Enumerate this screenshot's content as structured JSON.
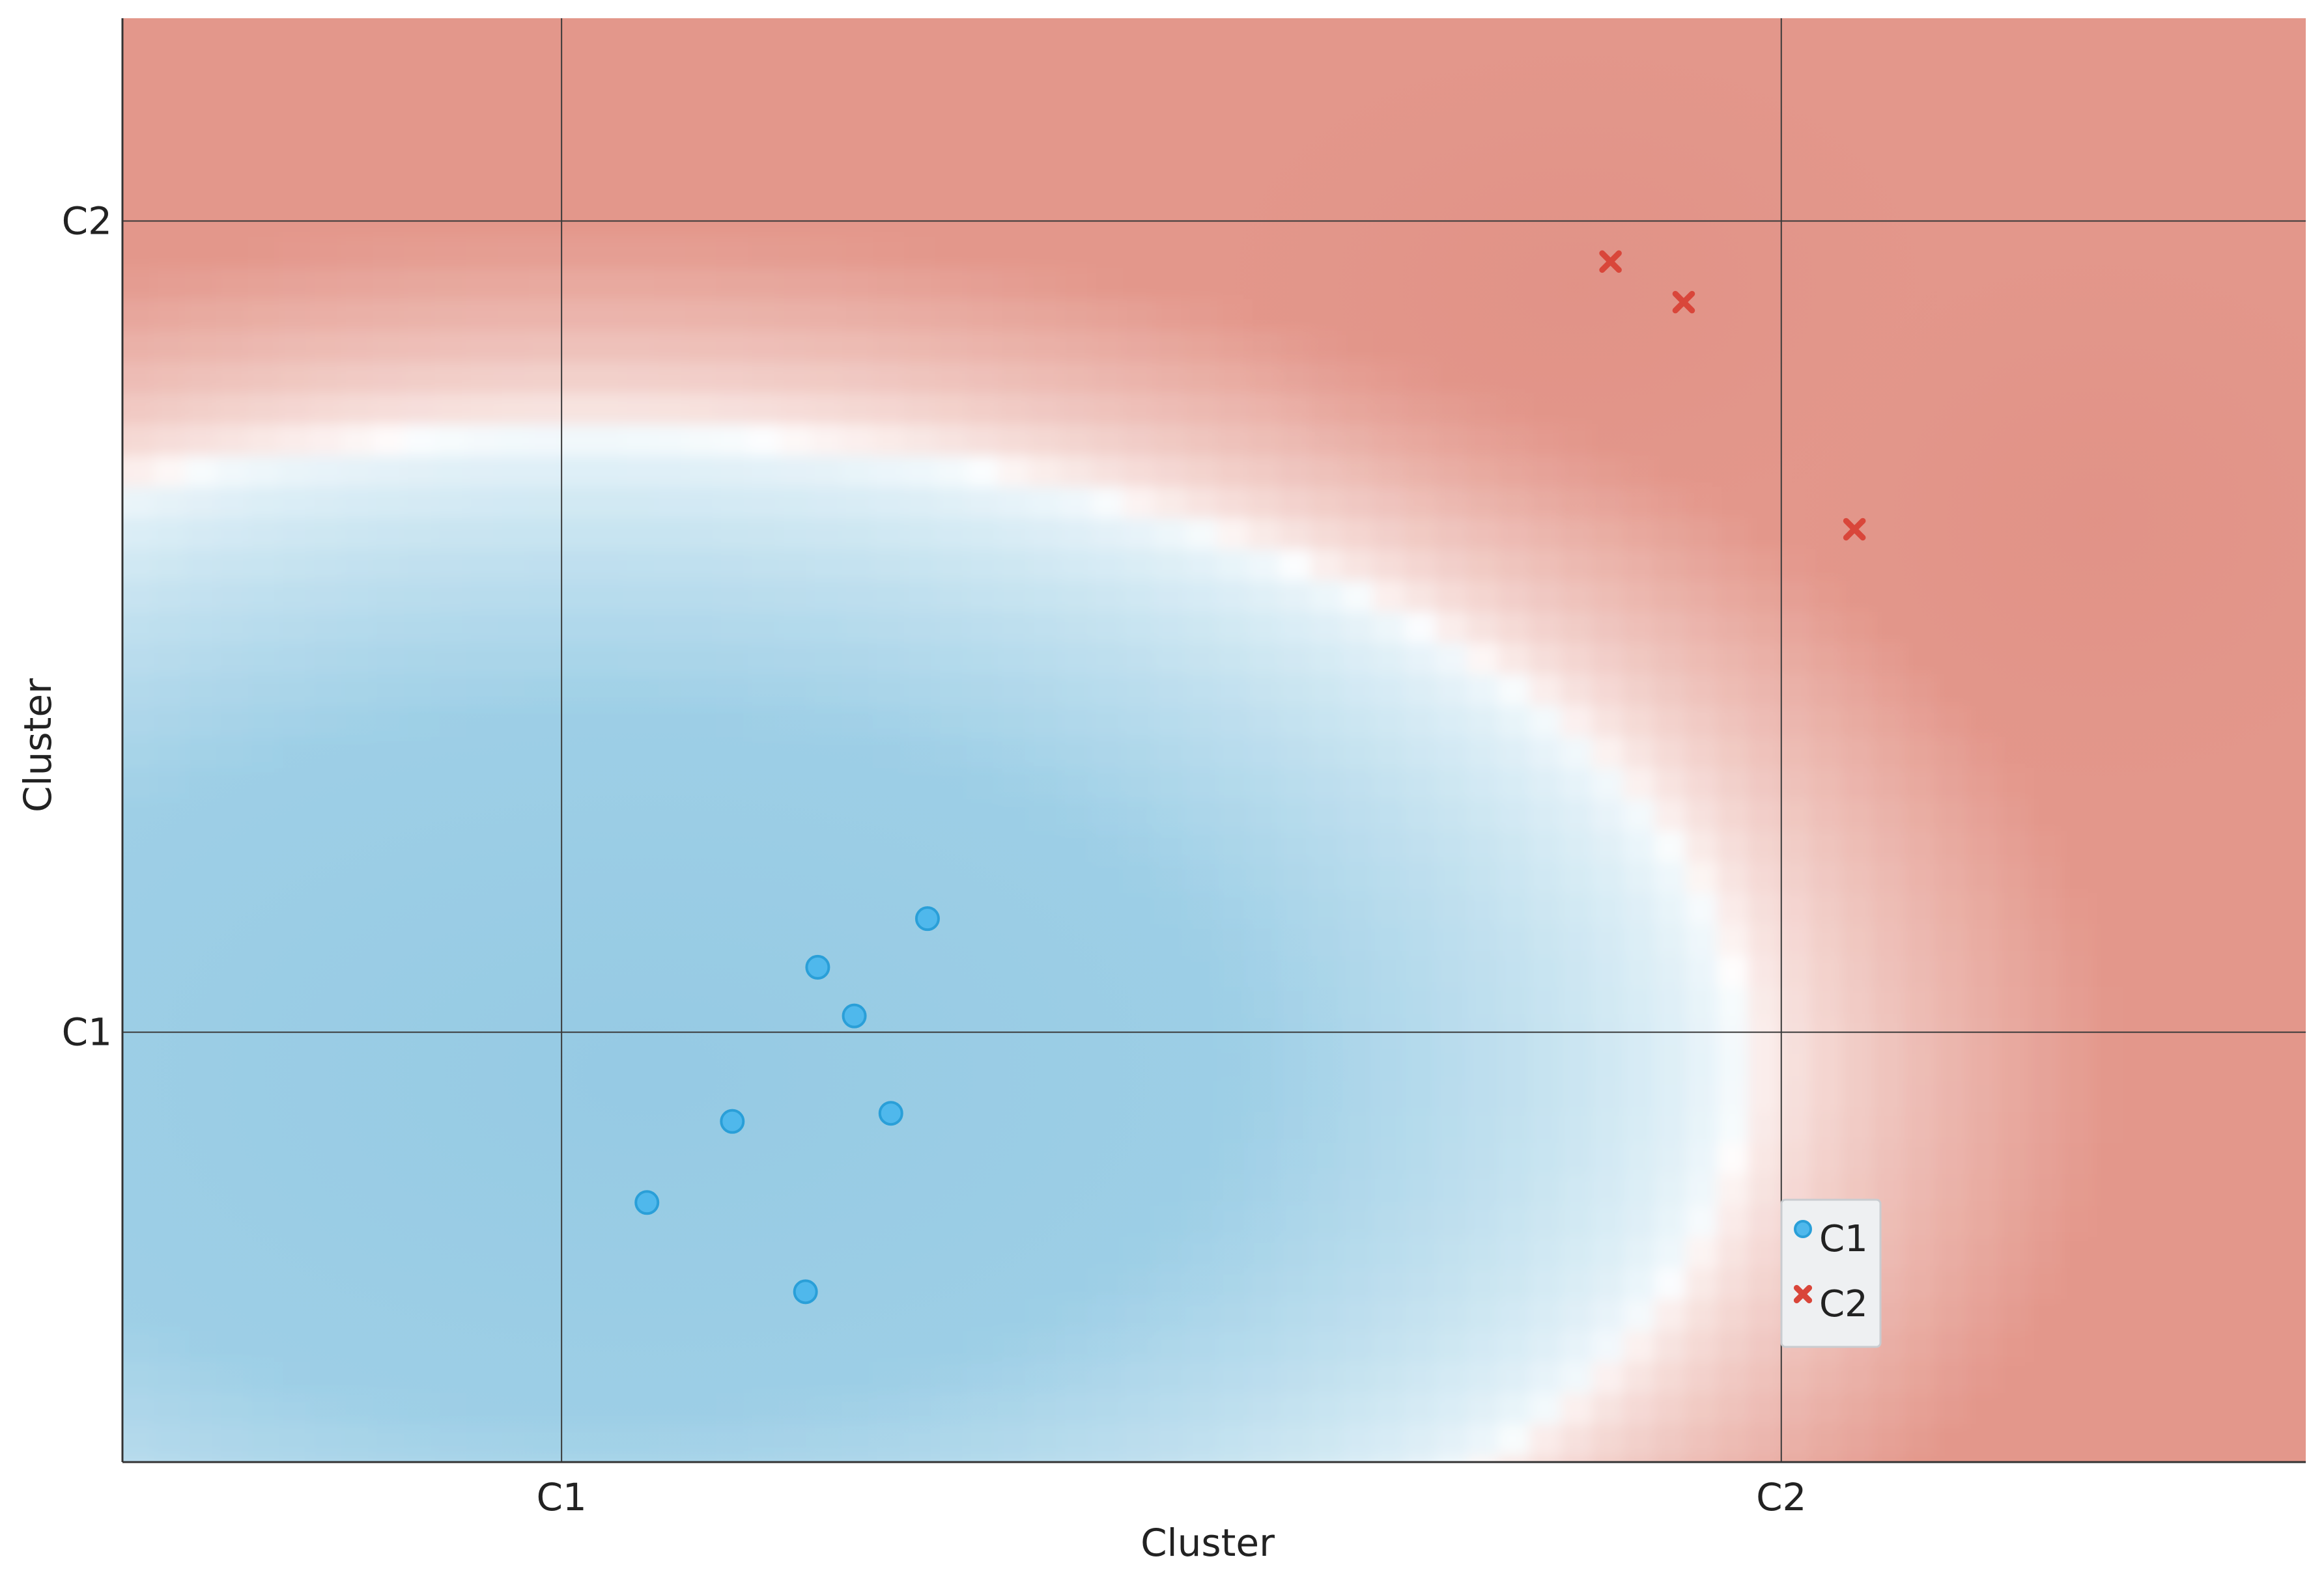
{
  "chart_data": {
    "type": "scatter",
    "title": "",
    "xlabel": "Cluster",
    "ylabel": "Cluster",
    "xlim": [
      0.64,
      2.43
    ],
    "ylim": [
      0.47,
      2.25
    ],
    "x_ticks": [
      {
        "value": 1,
        "label": "C1"
      },
      {
        "value": 2,
        "label": "C2"
      }
    ],
    "y_ticks": [
      {
        "value": 1,
        "label": "C1"
      },
      {
        "value": 2,
        "label": "C2"
      }
    ],
    "grid": true,
    "background": "decision-boundary heatmap (blue = C1 region, red = C2 region)",
    "legend_position": "lower-right",
    "series": [
      {
        "name": "C1",
        "marker": "circle",
        "color": "#4fb8ec",
        "points": [
          {
            "x": 1.07,
            "y": 0.79
          },
          {
            "x": 1.14,
            "y": 0.89
          },
          {
            "x": 1.2,
            "y": 0.68
          },
          {
            "x": 1.21,
            "y": 1.08
          },
          {
            "x": 1.24,
            "y": 1.02
          },
          {
            "x": 1.27,
            "y": 0.9
          },
          {
            "x": 1.3,
            "y": 1.14
          }
        ]
      },
      {
        "name": "C2",
        "marker": "x",
        "color": "#d9463a",
        "points": [
          {
            "x": 1.86,
            "y": 1.95
          },
          {
            "x": 1.92,
            "y": 1.9
          },
          {
            "x": 2.06,
            "y": 1.62
          }
        ]
      }
    ]
  },
  "colors": {
    "c1_region": "#9ecfe6",
    "c2_region": "#e3978b",
    "grid": "#3a3a3a",
    "legend_bg": "#eef0f2"
  }
}
